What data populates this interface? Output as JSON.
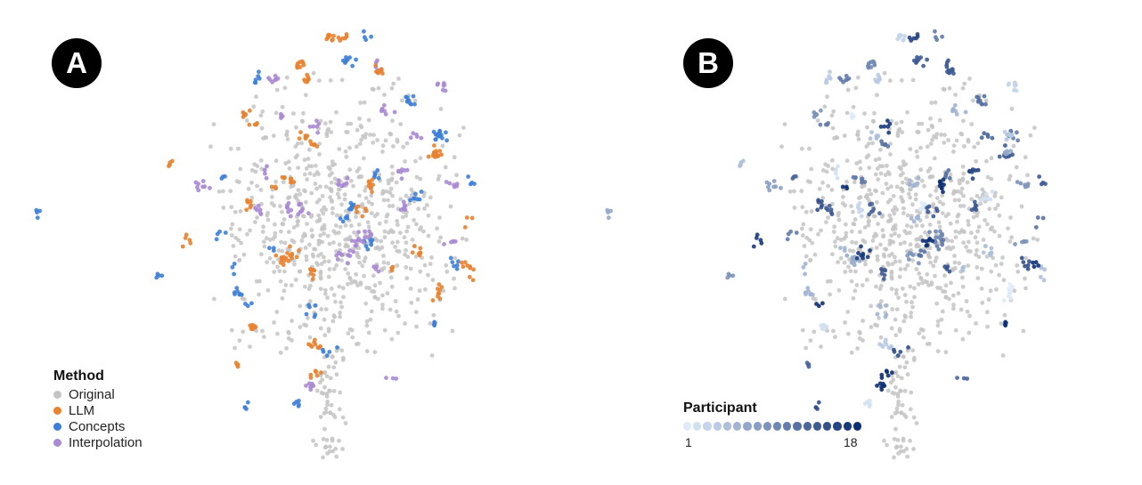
{
  "panels": [
    {
      "label": "A"
    },
    {
      "label": "B"
    }
  ],
  "legend_method": {
    "title": "Method",
    "items": [
      {
        "label": "Original",
        "color": "#c4c4c4"
      },
      {
        "label": "LLM",
        "color": "#e8822f"
      },
      {
        "label": "Concepts",
        "color": "#3d7fd8"
      },
      {
        "label": "Interpolation",
        "color": "#a98ad3"
      }
    ]
  },
  "legend_participant": {
    "title": "Participant",
    "min_label": "1",
    "max_label": "18",
    "count": 18,
    "color_low": "#deebfa",
    "color_high": "#0d2f73"
  },
  "chart_data": [
    {
      "type": "scatter",
      "panel": "A",
      "encoding": "color = Method",
      "series": [
        "Original",
        "LLM",
        "Concepts",
        "Interpolation"
      ]
    },
    {
      "type": "scatter",
      "panel": "B",
      "encoding": "color = Participant (1–18); Original points in gray",
      "participant_range": [
        1,
        18
      ]
    }
  ]
}
